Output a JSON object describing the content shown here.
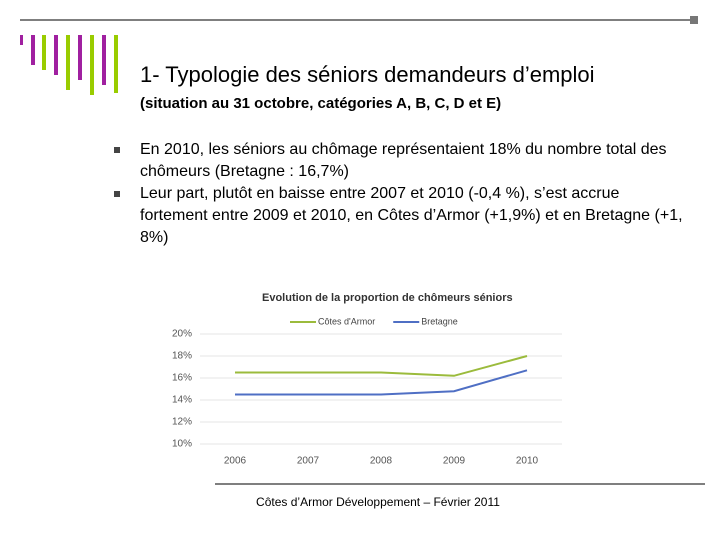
{
  "slide": {
    "title": "1- Typologie des séniors demandeurs d’emploi",
    "subtitle": "(situation au 31 octobre, catégories A, B, C, D et E)",
    "bullets": [
      "En 2010, les séniors au chômage représentaient 18% du nombre total des chômeurs (Bretagne : 16,7%)",
      "Leur part, plutôt en baisse entre 2007 et 2010 (-0,4 %), s’est accrue fortement entre 2009 et 2010, en Côtes d’Armor (+1,9%) et en Bretagne (+1, 8%)"
    ],
    "footer": "Côtes d’Armor Développement – Février 2011"
  },
  "chart_data": {
    "type": "line",
    "title": "Evolution de la proportion de chômeurs séniors",
    "categories": [
      "2006",
      "2007",
      "2008",
      "2009",
      "2010"
    ],
    "series": [
      {
        "name": "Côtes d'Armor",
        "color": "#9bbb3c",
        "values": [
          16.5,
          16.5,
          16.5,
          16.2,
          18.0
        ]
      },
      {
        "name": "Bretagne",
        "color": "#4f6fc4",
        "values": [
          14.5,
          14.5,
          14.5,
          14.8,
          16.7
        ]
      }
    ],
    "ylim": [
      10,
      20
    ],
    "yticks": [
      {
        "value": 10,
        "label": "10%"
      },
      {
        "value": 12,
        "label": "12%"
      },
      {
        "value": 14,
        "label": "14%"
      },
      {
        "value": 16,
        "label": "16%"
      },
      {
        "value": 18,
        "label": "18%"
      },
      {
        "value": 20,
        "label": "20%"
      }
    ],
    "grid": true,
    "legend": "top"
  }
}
